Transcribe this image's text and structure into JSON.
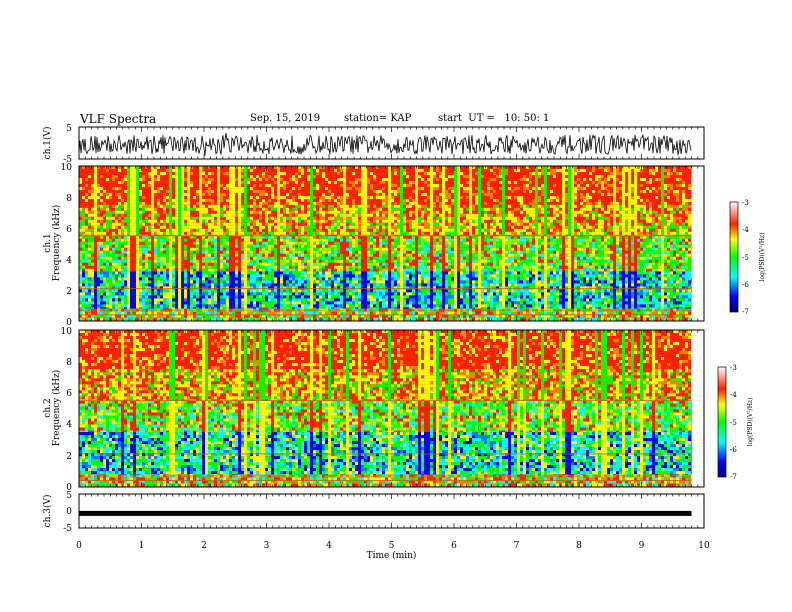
{
  "header": {
    "title": "VLF Spectra",
    "date": "Sep. 15, 2019",
    "station": "station= KAP",
    "start": "start  UT =   10: 50: 1"
  },
  "chart_data": [
    {
      "type": "line",
      "ylabel": "ch.1(V)",
      "ylim": [
        -5,
        5
      ],
      "yticks": [
        "5",
        "-5"
      ],
      "description": "noisy waveform oscillating between about +3 V and -4 V"
    },
    {
      "type": "heatmap",
      "ylabel": "Frequency (kHz)",
      "channel": "ch.1",
      "ylim": [
        0,
        10
      ],
      "yticks": [
        "0",
        "2",
        "4",
        "6",
        "8",
        "10"
      ],
      "bands": [
        {
          "from": 0,
          "to": 0.8,
          "level": "mixed"
        },
        {
          "from": 0.8,
          "to": 3.2,
          "level": "low"
        },
        {
          "from": 3.2,
          "to": 5.5,
          "level": "mid"
        },
        {
          "from": 5.5,
          "to": 7.5,
          "level": "high"
        },
        {
          "from": 7.5,
          "to": 10,
          "level": "very high"
        }
      ],
      "colorbar": {
        "label": "log(PSD)(V²/Hz)",
        "range": [
          -7,
          -3
        ],
        "ticks": [
          "-3",
          "-4",
          "-5",
          "-6",
          "-7"
        ]
      }
    },
    {
      "type": "heatmap",
      "ylabel": "Frequency (kHz)",
      "channel": "ch.2",
      "ylim": [
        0,
        10
      ],
      "yticks": [
        "0",
        "2",
        "4",
        "6",
        "8",
        "10"
      ],
      "bands": [
        {
          "from": 0,
          "to": 0.8,
          "level": "mixed"
        },
        {
          "from": 0.8,
          "to": 3.5,
          "level": "low"
        },
        {
          "from": 3.5,
          "to": 5.5,
          "level": "mid"
        },
        {
          "from": 5.5,
          "to": 7.5,
          "level": "high"
        },
        {
          "from": 7.5,
          "to": 10,
          "level": "very high"
        }
      ],
      "colorbar": {
        "label": "log(PSD)(V²/Hz)",
        "range": [
          -7,
          -3
        ],
        "ticks": [
          "-3",
          "-4",
          "-5",
          "-6",
          "-7"
        ]
      }
    },
    {
      "type": "line",
      "ylabel": "ch.3(V)",
      "ylim": [
        -5,
        5
      ],
      "yticks": [
        "5",
        "0",
        "-5"
      ],
      "values_constant": -0.7,
      "description": "flat thick line at about -0.7 V"
    }
  ],
  "x_axis": {
    "label": "Time (min)",
    "range": [
      0,
      10
    ],
    "ticks": [
      "0",
      "1",
      "2",
      "3",
      "4",
      "5",
      "6",
      "7",
      "8",
      "9",
      "10"
    ],
    "data_end": 9.8
  },
  "colors": {
    "red": "#ff2000",
    "yellow": "#ffff00",
    "green": "#00ff00",
    "cyan": "#00ffff",
    "blue": "#0000ff",
    "navy": "#000080"
  }
}
